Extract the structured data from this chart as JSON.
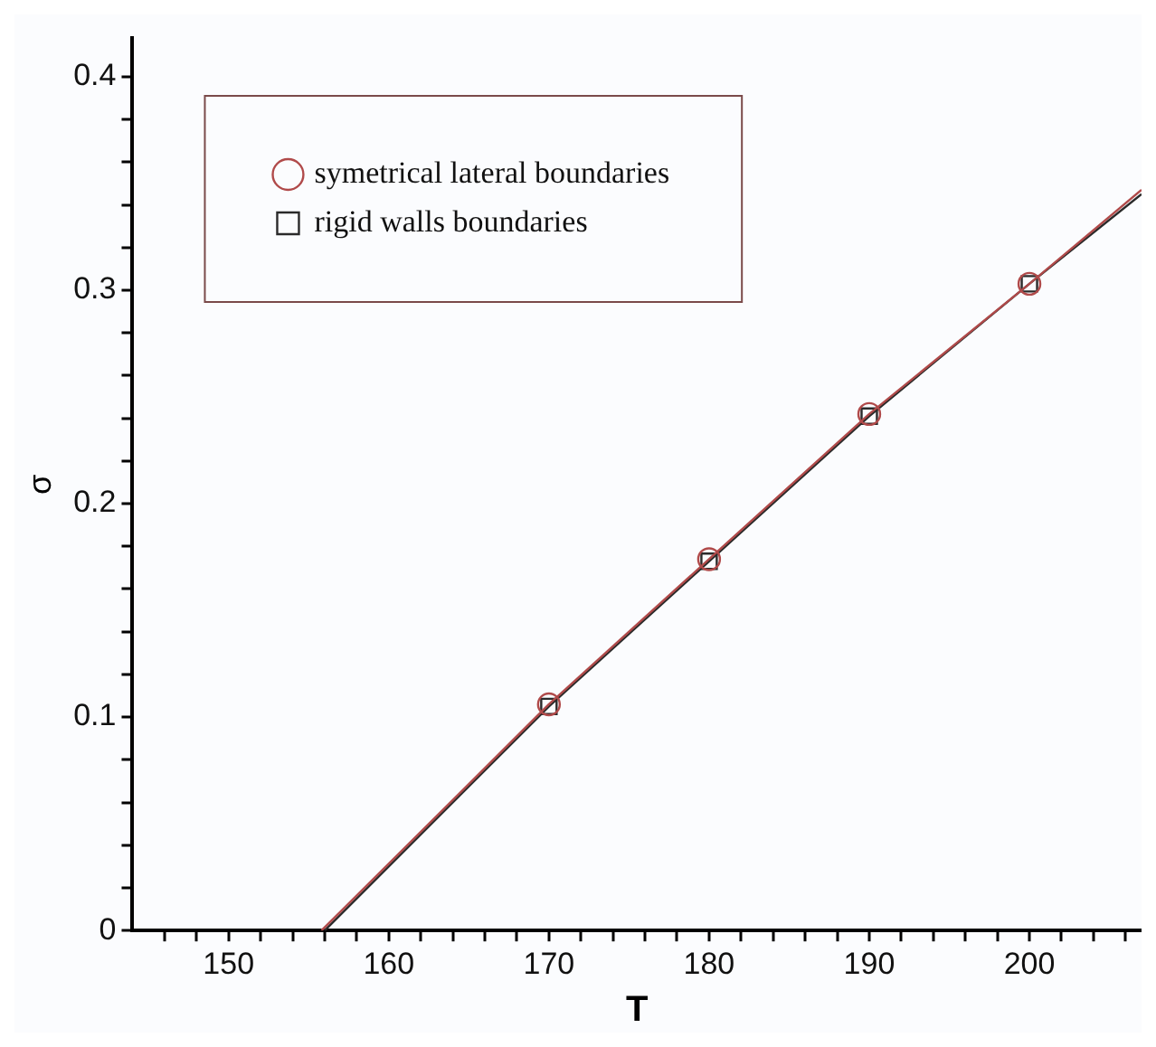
{
  "chart_data": {
    "type": "line",
    "xlabel": "T",
    "ylabel": "σ",
    "xlim": [
      144,
      207
    ],
    "ylim": [
      0,
      0.418
    ],
    "xticks": [
      {
        "value": 146,
        "label": null
      },
      {
        "value": 148,
        "label": null
      },
      150,
      {
        "value": 152,
        "label": null
      },
      {
        "value": 154,
        "label": null
      },
      {
        "value": 156,
        "label": null
      },
      {
        "value": 158,
        "label": null
      },
      160,
      {
        "value": 162,
        "label": null
      },
      {
        "value": 164,
        "label": null
      },
      {
        "value": 166,
        "label": null
      },
      {
        "value": 168,
        "label": null
      },
      170,
      {
        "value": 172,
        "label": null
      },
      {
        "value": 174,
        "label": null
      },
      {
        "value": 176,
        "label": null
      },
      {
        "value": 178,
        "label": null
      },
      180,
      {
        "value": 182,
        "label": null
      },
      {
        "value": 184,
        "label": null
      },
      {
        "value": 186,
        "label": null
      },
      {
        "value": 188,
        "label": null
      },
      190,
      {
        "value": 192,
        "label": null
      },
      {
        "value": 194,
        "label": null
      },
      {
        "value": 196,
        "label": null
      },
      {
        "value": 198,
        "label": null
      },
      200,
      {
        "value": 202,
        "label": null
      },
      {
        "value": 204,
        "label": null
      },
      {
        "value": 206,
        "label": null
      }
    ],
    "yticks": [
      0,
      {
        "value": 0.02,
        "label": null
      },
      {
        "value": 0.04,
        "label": null
      },
      {
        "value": 0.06,
        "label": null
      },
      {
        "value": 0.08,
        "label": null
      },
      0.1,
      {
        "value": 0.12,
        "label": null
      },
      {
        "value": 0.14,
        "label": null
      },
      {
        "value": 0.16,
        "label": null
      },
      {
        "value": 0.18,
        "label": null
      },
      0.2,
      {
        "value": 0.22,
        "label": null
      },
      {
        "value": 0.24,
        "label": null
      },
      {
        "value": 0.26,
        "label": null
      },
      {
        "value": 0.28,
        "label": null
      },
      0.3,
      {
        "value": 0.32,
        "label": null
      },
      {
        "value": 0.34,
        "label": null
      },
      {
        "value": 0.36,
        "label": null
      },
      {
        "value": 0.38,
        "label": null
      },
      0.4
    ],
    "grid": false,
    "legend": "top left",
    "line_style": "solid",
    "series": [
      {
        "name": "symetrical lateral boundaries",
        "color": "#b04a4a",
        "marker": "circle",
        "x": [
          155.8,
          170,
          180,
          190,
          200,
          207
        ],
        "values": [
          0,
          0.106,
          0.174,
          0.242,
          0.303,
          0.347
        ]
      },
      {
        "name": "rigid walls boundaries",
        "color": "#2a2a2a",
        "marker": "square",
        "x": [
          156,
          170,
          180,
          190,
          200,
          207
        ],
        "values": [
          0,
          0.105,
          0.173,
          0.241,
          0.303,
          0.345
        ]
      }
    ]
  }
}
